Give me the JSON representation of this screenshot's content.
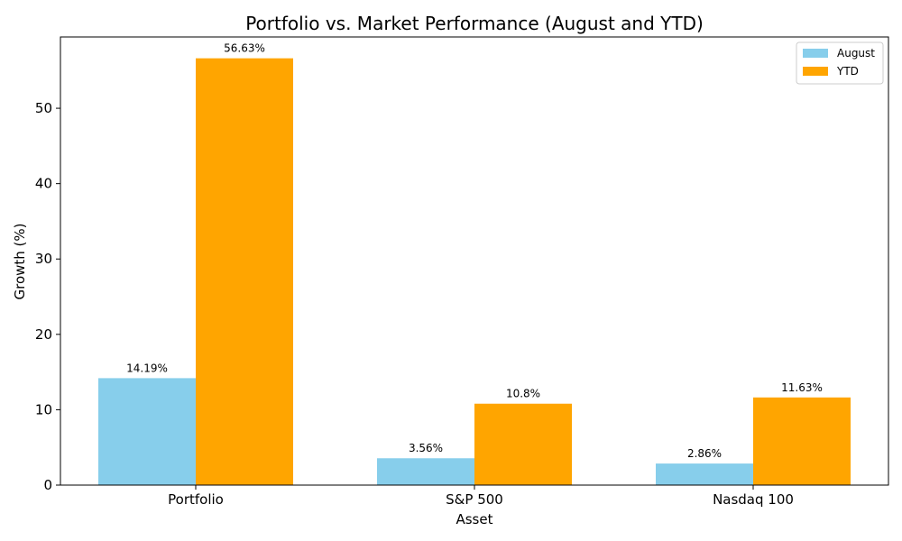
{
  "chart_data": {
    "type": "bar",
    "title": "Portfolio vs. Market Performance (August and YTD)",
    "xlabel": "Asset",
    "ylabel": "Growth (%)",
    "categories": [
      "Portfolio",
      "S&P 500",
      "Nasdaq 100"
    ],
    "series": [
      {
        "name": "August",
        "values": [
          14.19,
          3.56,
          2.86
        ],
        "labels": [
          "14.19%",
          "3.56%",
          "2.86%"
        ],
        "color": "#87CEEB"
      },
      {
        "name": "YTD",
        "values": [
          56.63,
          10.8,
          11.63
        ],
        "labels": [
          "56.63%",
          "10.8%",
          "11.63%"
        ],
        "color": "#FFA500"
      }
    ],
    "ylim": [
      0,
      59.46
    ],
    "yticks": [
      0,
      10,
      20,
      30,
      40,
      50
    ],
    "grid": false,
    "legend": "top-right"
  }
}
